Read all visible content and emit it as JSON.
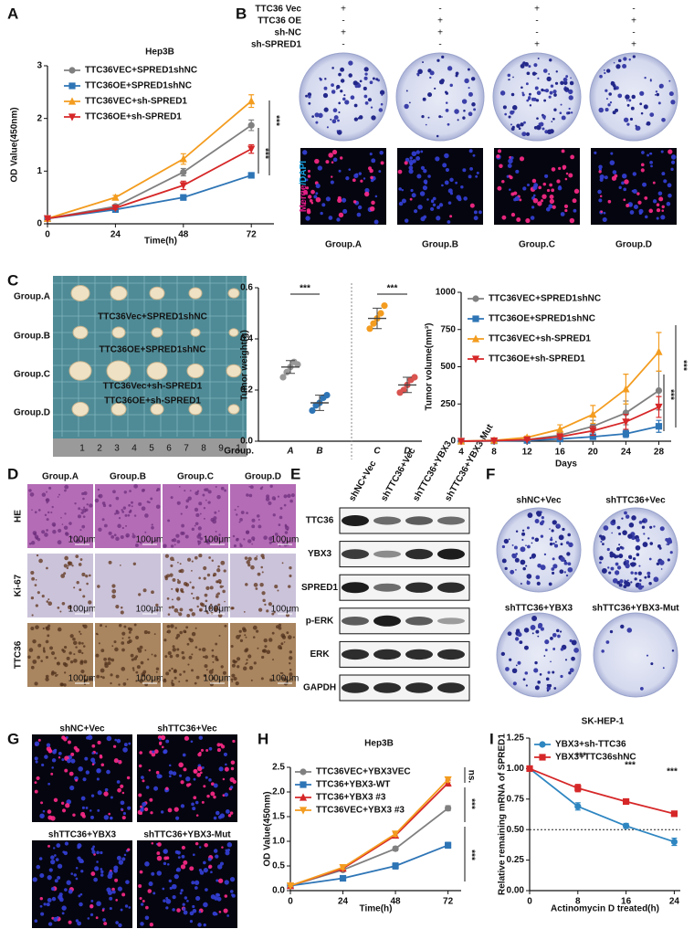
{
  "chart_data": [
    {
      "type": "line",
      "title": "Hep3B",
      "xlabel": "Time(h)",
      "ylabel": "OD Value(450nm)",
      "x": [
        0,
        24,
        48,
        72
      ],
      "xlim": [
        0,
        80
      ],
      "xticks": [
        0,
        24,
        48,
        72
      ],
      "ylim": [
        0,
        3
      ],
      "yticks": [
        0,
        1,
        2,
        3
      ],
      "series": [
        {
          "name": "TTC36VEC+SPRED1shNC",
          "color": "#808080",
          "marker": "circle",
          "values": [
            0.1,
            0.33,
            0.98,
            1.87
          ],
          "errors": [
            0.02,
            0.03,
            0.07,
            0.1
          ]
        },
        {
          "name": "TTC36OE+SPRED1shNC",
          "color": "#2e75b6",
          "marker": "square",
          "values": [
            0.1,
            0.27,
            0.5,
            0.92
          ],
          "errors": [
            0.02,
            0.03,
            0.05,
            0.05
          ]
        },
        {
          "name": "TTC36VEC+sh-SPRED1",
          "color": "#f39c1f",
          "marker": "triangle-up",
          "values": [
            0.1,
            0.5,
            1.23,
            2.33
          ],
          "errors": [
            0.02,
            0.04,
            0.1,
            0.12
          ]
        },
        {
          "name": "TTC36OE+sh-SPRED1",
          "color": "#d62728",
          "marker": "triangle-down",
          "values": [
            0.1,
            0.3,
            0.73,
            1.42
          ],
          "errors": [
            0.02,
            0.03,
            0.08,
            0.08
          ]
        }
      ],
      "annotations": [
        "***",
        "***"
      ]
    },
    {
      "type": "dot",
      "ylabel": "Tumor weight(g)",
      "xlabel": "Group.",
      "categories": [
        "A",
        "B",
        "C",
        "D"
      ],
      "values": [
        0.29,
        0.15,
        0.48,
        0.22
      ],
      "errors": [
        0.025,
        0.03,
        0.04,
        0.03
      ],
      "points": [
        [
          0.25,
          0.27,
          0.29,
          0.31,
          0.3
        ],
        [
          0.12,
          0.14,
          0.15,
          0.17,
          0.18
        ],
        [
          0.44,
          0.46,
          0.48,
          0.5,
          0.53
        ],
        [
          0.19,
          0.2,
          0.22,
          0.24,
          0.25
        ]
      ],
      "colors": [
        "#999999",
        "#2e75b6",
        "#f39c1f",
        "#d9534f"
      ],
      "ylim": [
        0,
        0.6
      ],
      "yticks": [
        {
          "value": 0,
          "label": "0.0"
        },
        0.2,
        0.4,
        0.6
      ],
      "annotations": [
        "***",
        "***"
      ]
    },
    {
      "type": "line",
      "xlabel": "Days",
      "ylabel": "Tumor volume(mm³)",
      "x": [
        4,
        8,
        12,
        16,
        20,
        24,
        28
      ],
      "xlim": [
        4,
        29.5
      ],
      "xticks": [
        4,
        8,
        12,
        16,
        20,
        24,
        28
      ],
      "ylim": [
        0,
        1000
      ],
      "yticks": [
        0,
        250,
        500,
        750,
        1000
      ],
      "series": [
        {
          "name": "TTC36VEC+SPRED1shNC",
          "color": "#808080",
          "marker": "circle",
          "values": [
            0,
            5,
            10,
            40,
            100,
            190,
            340
          ],
          "errors": [
            0,
            2,
            5,
            15,
            40,
            80,
            130
          ]
        },
        {
          "name": "TTC36OE+SPRED1shNC",
          "color": "#2e75b6",
          "marker": "square",
          "values": [
            0,
            2,
            5,
            15,
            30,
            50,
            100
          ],
          "errors": [
            0,
            1,
            3,
            8,
            15,
            25,
            40
          ]
        },
        {
          "name": "TTC36VEC+sh-SPRED1",
          "color": "#f39c1f",
          "marker": "triangle-up",
          "values": [
            0,
            5,
            25,
            80,
            180,
            350,
            600
          ],
          "errors": [
            0,
            3,
            10,
            30,
            60,
            100,
            130
          ]
        },
        {
          "name": "TTC36OE+sh-SPRED1",
          "color": "#d62728",
          "marker": "triangle-down",
          "values": [
            0,
            3,
            10,
            30,
            70,
            130,
            230
          ],
          "errors": [
            0,
            2,
            5,
            15,
            30,
            50,
            70
          ]
        }
      ],
      "annotations": [
        "***",
        "***"
      ]
    },
    {
      "type": "line",
      "title": "Hep3B",
      "xlabel": "Time(h)",
      "ylabel": "OD Value(450nm)",
      "x": [
        0,
        24,
        48,
        72
      ],
      "xlim": [
        0,
        78
      ],
      "xticks": [
        0,
        24,
        48,
        72
      ],
      "ylim": [
        0,
        2.5
      ],
      "yticks": [
        {
          "value": 0,
          "label": "0.0"
        },
        0.5,
        {
          "value": 1,
          "label": "1.0"
        },
        1.5,
        {
          "value": 2,
          "label": "2.0"
        },
        2.5
      ],
      "series": [
        {
          "name": "TTC36VEC+YBX3VEC",
          "color": "#808080",
          "marker": "circle",
          "values": [
            0.1,
            0.42,
            0.85,
            1.67
          ],
          "errors": [
            0.02,
            0.03,
            0.04,
            0.05
          ]
        },
        {
          "name": "TTC36+YBX3-WT",
          "color": "#2e75b6",
          "marker": "square",
          "values": [
            0.1,
            0.25,
            0.5,
            0.92
          ],
          "errors": [
            0.02,
            0.03,
            0.06,
            0.06
          ]
        },
        {
          "name": "TTC36+YBX3 #3",
          "color": "#d62728",
          "marker": "triangle-up",
          "values": [
            0.1,
            0.45,
            1.12,
            2.18
          ],
          "errors": [
            0.02,
            0.04,
            0.05,
            0.06
          ]
        },
        {
          "name": "TTC36VEC+YBX3 #3",
          "color": "#f39c1f",
          "marker": "triangle-down",
          "values": [
            0.1,
            0.47,
            1.15,
            2.25
          ],
          "errors": [
            0.02,
            0.04,
            0.05,
            0.05
          ]
        }
      ],
      "annotations": [
        "ns.",
        "***",
        "***"
      ]
    },
    {
      "type": "line",
      "title": "SK-HEP-1",
      "xlabel": "Actinomycin D treated(h)",
      "ylabel": "Relative remaining mRNA of SPRED1",
      "x": [
        0,
        8,
        16,
        24
      ],
      "xlim": [
        0,
        25
      ],
      "xticks": [
        0,
        8,
        16,
        24
      ],
      "ylim": [
        0,
        1.25
      ],
      "yticks": [
        {
          "value": 0,
          "label": "0.00"
        },
        0.25,
        {
          "value": 0.5,
          "label": "0.50"
        },
        0.75,
        {
          "value": 1,
          "label": "1.00"
        },
        1.25
      ],
      "hline": 0.5,
      "series": [
        {
          "name": "YBX3+sh-TTC36",
          "color": "#2e86c1",
          "marker": "circle",
          "values": [
            1.0,
            0.69,
            0.53,
            0.4
          ],
          "errors": [
            0.01,
            0.03,
            0.02,
            0.03
          ]
        },
        {
          "name": "YBX3+TTC36shNC",
          "color": "#d62728",
          "marker": "square",
          "values": [
            1.0,
            0.84,
            0.73,
            0.63
          ],
          "errors": [
            0.01,
            0.03,
            0.02,
            0.02
          ]
        }
      ],
      "annotations": [
        "***",
        "***",
        "***"
      ]
    }
  ],
  "panels": [
    "A",
    "B",
    "C",
    "D",
    "E",
    "F",
    "G",
    "H",
    "I"
  ],
  "panel_b": {
    "rows": [
      {
        "label": "TTC36 Vec",
        "signs": [
          "+",
          "-",
          "+",
          "-"
        ]
      },
      {
        "label": "TTC36 OE",
        "signs": [
          "-",
          "+",
          "-",
          "+"
        ]
      },
      {
        "label": "sh-NC",
        "signs": [
          "+",
          "+",
          "-",
          "-"
        ]
      },
      {
        "label": "sh-SPRED1",
        "signs": [
          "-",
          "-",
          "+",
          "+"
        ]
      }
    ],
    "side_label": [
      "Merge",
      "/DAPI"
    ],
    "groups": [
      "Group.A",
      "Group.B",
      "Group.C",
      "Group.D"
    ]
  },
  "panel_c": {
    "groups": [
      "Group.A",
      "Group.B",
      "Group.C",
      "Group.D"
    ],
    "overlay": [
      "TTC36Vec+SPRED1shNC",
      "TTC36OE+SPRED1shNC",
      "TTC36Vec+sh-SPRED1",
      "TTC36OE+sh-SPRED1"
    ],
    "ruler": [
      "1",
      "2",
      "3",
      "4",
      "5",
      "6",
      "7",
      "8",
      "9",
      "1"
    ]
  },
  "panel_d": {
    "columns": [
      "Group.A",
      "Group.B",
      "Group.C",
      "Group.D"
    ],
    "rows": [
      "HE",
      "Ki-67",
      "TTC36"
    ],
    "scale": "100μm"
  },
  "panel_e": {
    "columns": [
      "shNC+Vec",
      "shTTC36+Vec",
      "shTTC36+YBX3",
      "shTTC36+YBX3-Mut"
    ],
    "rows": [
      "TTC36",
      "YBX3",
      "SPRED1",
      "p-ERK",
      "ERK",
      "GAPDH"
    ]
  },
  "panel_f": {
    "labels": [
      "shNC+Vec",
      "shTTC36+Vec",
      "shTTC36+YBX3",
      "shTTC36+YBX3-Mut"
    ]
  },
  "panel_g": {
    "labels": [
      "shNC+Vec",
      "shTTC36+Vec",
      "shTTC36+YBX3",
      "shTTC36+YBX3-Mut"
    ]
  }
}
